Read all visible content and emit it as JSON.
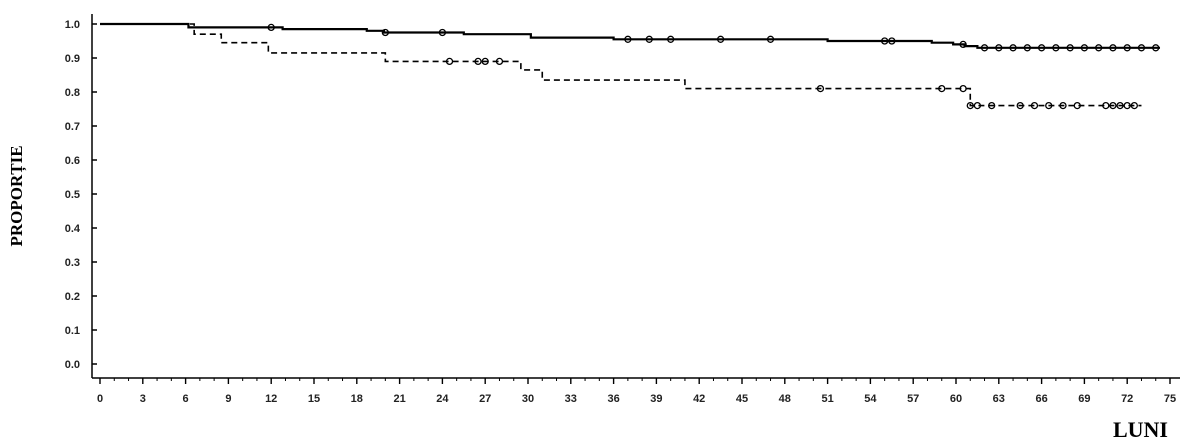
{
  "chart_data": {
    "type": "line",
    "title": "",
    "xlabel": "LUNI",
    "ylabel": "PROPORȚIE",
    "xlim": [
      0,
      75
    ],
    "ylim": [
      0,
      1.0
    ],
    "xticks": [
      0,
      3,
      6,
      9,
      12,
      15,
      18,
      21,
      24,
      27,
      30,
      33,
      36,
      39,
      42,
      45,
      48,
      51,
      54,
      57,
      60,
      63,
      66,
      69,
      72,
      75
    ],
    "xtick_labels": [
      "0",
      "3",
      "6",
      "9",
      "12",
      "15",
      "18",
      "21",
      "24",
      "27",
      "30",
      "33",
      "36",
      "39",
      "42",
      "45",
      "48",
      "51",
      "54",
      "57",
      "60",
      "63",
      "66",
      "69",
      "72",
      "75"
    ],
    "yticks": [
      0,
      0.1,
      0.2,
      0.3,
      0.4,
      0.5,
      0.6,
      0.7,
      0.8,
      0.9,
      1.0
    ],
    "ytick_labels": [
      "0.0",
      "0.1",
      "0.2",
      "0.3",
      "0.4",
      "0.5",
      "0.6",
      "0.7",
      "0.8",
      "0.9",
      "1.0"
    ],
    "grid": false,
    "legend": "none",
    "series": [
      {
        "style": "solid",
        "color": "#000000",
        "x": [
          0,
          6.2,
          12.8,
          18.7,
          19.9,
          25.5,
          30.2,
          36.0,
          38.0,
          47.5,
          51.0,
          58.3,
          59.8,
          60.6,
          61.5,
          74.3
        ],
        "y": [
          1.0,
          0.99,
          0.985,
          0.98,
          0.975,
          0.97,
          0.96,
          0.955,
          0.955,
          0.955,
          0.95,
          0.945,
          0.94,
          0.935,
          0.93,
          0.93
        ],
        "censor_x": [
          12.0,
          20.0,
          24.0,
          37.0,
          38.5,
          40.0,
          43.5,
          47.0,
          55.0,
          55.5,
          60.5,
          62.0,
          63.0,
          64.0,
          65.0,
          66.0,
          67.0,
          68.0,
          69.0,
          70.0,
          71.0,
          72.0,
          73.0,
          74.0
        ]
      },
      {
        "style": "dashed",
        "color": "#000000",
        "x": [
          0,
          6.6,
          8.5,
          11.8,
          20.0,
          29.5,
          31.0,
          41.0,
          61.0,
          73.0
        ],
        "y": [
          1.0,
          0.97,
          0.945,
          0.915,
          0.89,
          0.865,
          0.835,
          0.81,
          0.76,
          0.76
        ],
        "censor_x": [
          24.5,
          26.5,
          27.0,
          28.0,
          50.5,
          59.0,
          60.5,
          61.0,
          61.5,
          62.5,
          64.5,
          65.5,
          66.5,
          67.5,
          68.5,
          70.5,
          71.0,
          71.5,
          72.0,
          72.5
        ]
      }
    ]
  }
}
